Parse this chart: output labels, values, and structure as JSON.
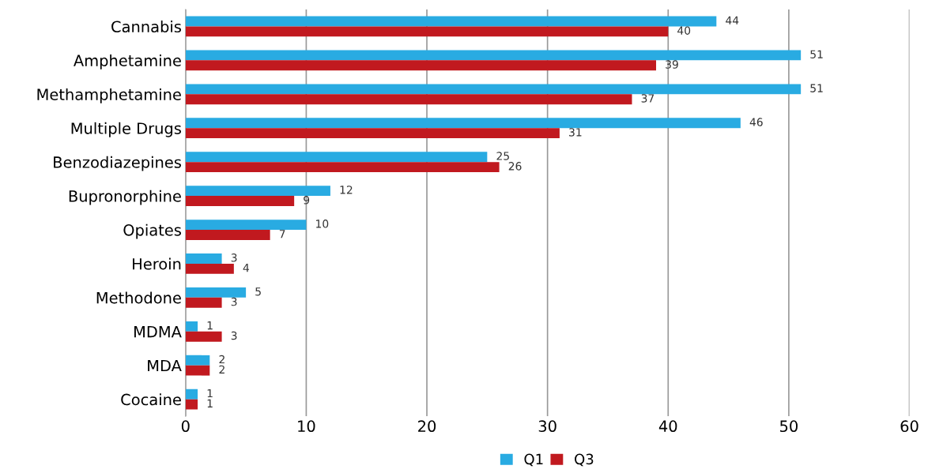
{
  "chart_data": {
    "type": "bar",
    "orientation": "horizontal",
    "categories": [
      "Cannabis",
      "Amphetamine",
      "Methamphetamine",
      "Multiple Drugs",
      "Benzodiazepines",
      "Bupronorphine",
      "Opiates",
      "Heroin",
      "Methodone",
      "MDMA",
      "MDA",
      "Cocaine"
    ],
    "series": [
      {
        "name": "Q1",
        "color": "#29abe2",
        "values": [
          44,
          51,
          51,
          46,
          25,
          12,
          10,
          3,
          5,
          1,
          2,
          1
        ]
      },
      {
        "name": "Q3",
        "color": "#c1191f",
        "values": [
          40,
          39,
          37,
          31,
          26,
          9,
          7,
          4,
          3,
          3,
          2,
          1
        ]
      }
    ],
    "xlim": [
      0,
      60
    ],
    "xticks": [
      0,
      10,
      20,
      30,
      40,
      50,
      60
    ],
    "grid": "x",
    "legend": "bottom",
    "data_labels": true
  }
}
